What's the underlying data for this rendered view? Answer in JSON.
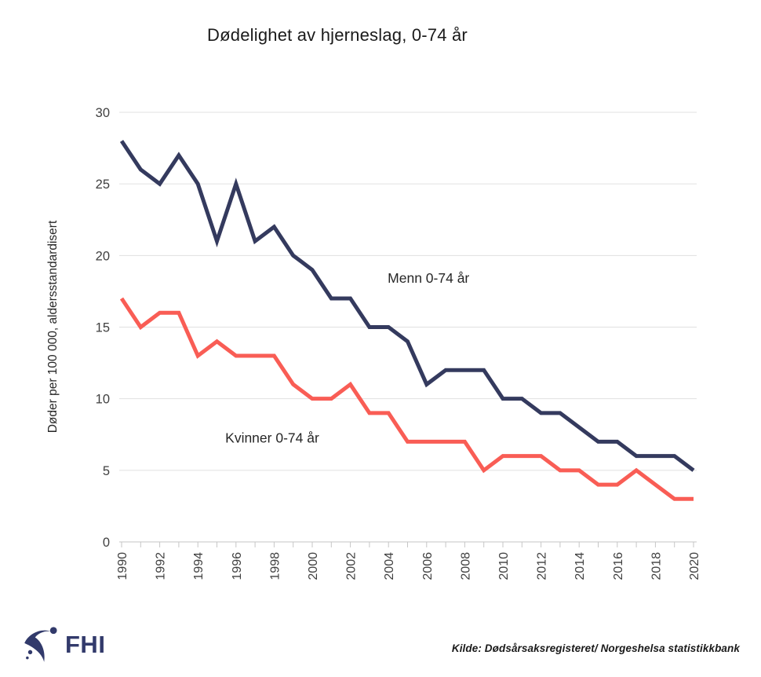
{
  "title": "Dødelighet av hjerneslag, 0-74 år",
  "chart_data": {
    "type": "line",
    "x": [
      1990,
      1991,
      1992,
      1993,
      1994,
      1995,
      1996,
      1997,
      1998,
      1999,
      2000,
      2001,
      2002,
      2003,
      2004,
      2005,
      2006,
      2007,
      2008,
      2009,
      2010,
      2011,
      2012,
      2013,
      2014,
      2015,
      2016,
      2017,
      2018,
      2019,
      2020
    ],
    "series": [
      {
        "name": "Menn 0-74 år",
        "color": "#343a5e",
        "values": [
          28,
          26,
          25,
          27,
          25,
          21,
          25,
          21,
          22,
          20,
          19,
          17,
          17,
          15,
          15,
          14,
          11,
          12,
          12,
          12,
          10,
          10,
          9,
          9,
          8,
          7,
          7,
          6,
          6,
          6,
          5
        ]
      },
      {
        "name": "Kvinner 0-74 år",
        "color": "#f95d55",
        "values": [
          17,
          15,
          16,
          16,
          13,
          14,
          13,
          13,
          13,
          11,
          10,
          10,
          11,
          9,
          9,
          7,
          7,
          7,
          7,
          5,
          6,
          6,
          6,
          5,
          5,
          4,
          4,
          5,
          4,
          3,
          3
        ]
      }
    ],
    "title": "Dødelighet av hjerneslag, 0-74 år",
    "xlabel": "",
    "ylabel": "Døder per 100 000, aldersstandardisert",
    "ylim": [
      0,
      30
    ],
    "yticks": [
      0,
      5,
      10,
      15,
      20,
      25,
      30
    ],
    "xtick_label_every": 2,
    "grid": true,
    "legend_position": "inline-annotations",
    "annotations": [
      {
        "text": "Menn 0-74 år",
        "x": 2006.1,
        "y": 18.1
      },
      {
        "text": "Kvinner 0-74 år",
        "x": 1997.9,
        "y": 6.95
      }
    ]
  },
  "footer": {
    "logo_text": "FHI",
    "source": "Kilde: Dødsårsaksregisteret/ Norgeshelsa statistikkbank"
  },
  "colors": {
    "men_line": "#343a5e",
    "women_line": "#f95d55",
    "gridline": "#e0e0e0",
    "axis": "#c6c6c6",
    "annotation_text": "#262626",
    "tick_text": "#404040",
    "logo_navy": "#323a6b"
  }
}
